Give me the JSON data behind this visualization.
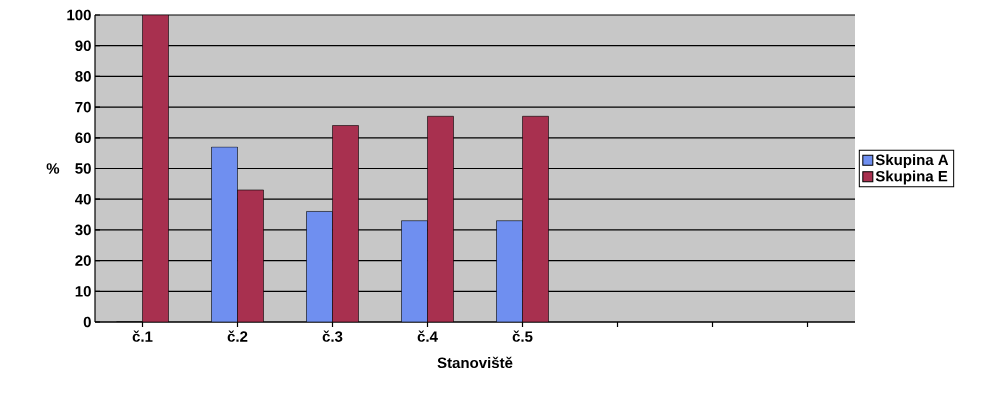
{
  "chart_data": {
    "type": "bar",
    "xlabel": "Stanoviště",
    "ylabel": "%",
    "categories": [
      "č.1",
      "č.2",
      "č.3",
      "č.4",
      "č.5",
      null,
      null,
      null
    ],
    "series": [
      {
        "name": "Skupina A",
        "color": "#6f8ff0",
        "values": [
          0,
          57,
          36,
          33,
          33,
          null,
          null,
          null
        ]
      },
      {
        "name": "Skupina E",
        "color": "#a8304f",
        "values": [
          100,
          43,
          64,
          67,
          67,
          null,
          null,
          null
        ]
      }
    ],
    "ylim": [
      0,
      100
    ],
    "yticks": [
      0,
      10,
      20,
      30,
      40,
      50,
      60,
      70,
      80,
      90,
      100
    ],
    "grid": "y",
    "legend": "right"
  }
}
